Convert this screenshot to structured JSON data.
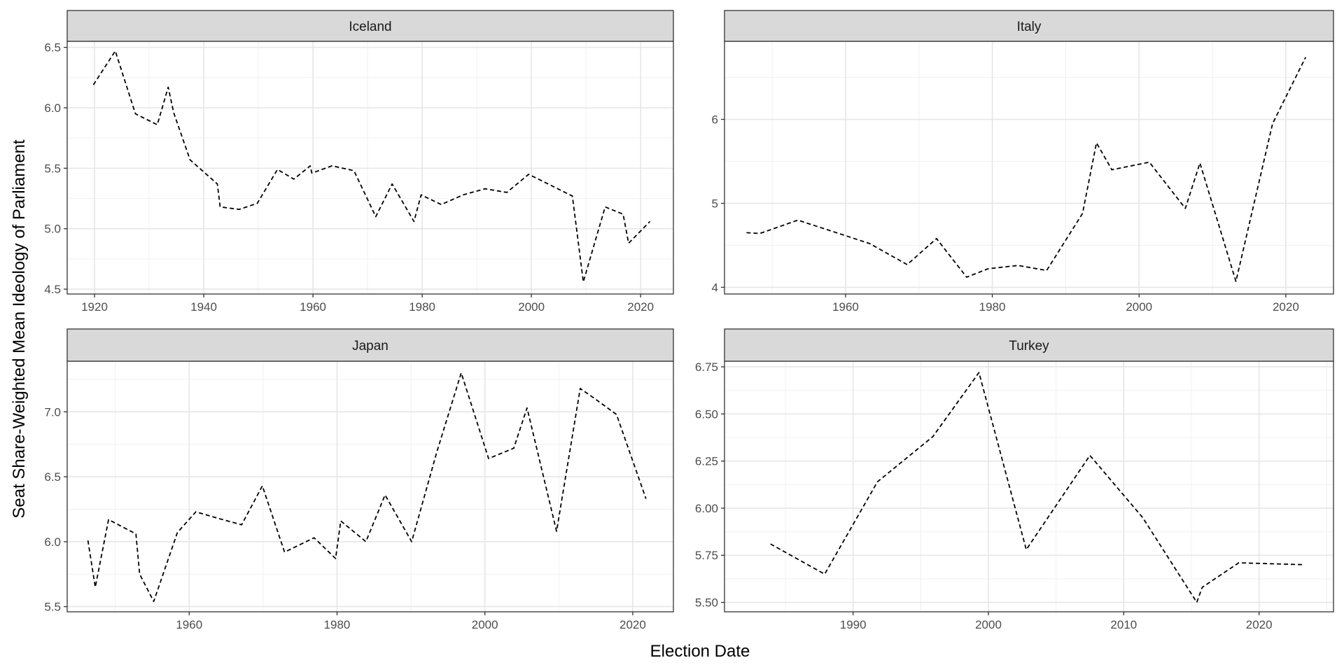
{
  "chart_data": {
    "type": "line",
    "layout": "facet-grid-2x2",
    "xlabel": "Election Date",
    "ylabel": "Seat Share-Weighted Mean Ideology of Parliament",
    "line_style": "dashed",
    "line_color": "#000000",
    "strip_color": "#d9d9d9",
    "grid": true,
    "panels": [
      {
        "title": "Iceland",
        "xlim": [
          1915,
          2026
        ],
        "ylim": [
          4.46,
          6.55
        ],
        "xticks": [
          1920,
          1940,
          1960,
          1980,
          2000,
          2020
        ],
        "yticks": [
          4.5,
          5.0,
          5.5,
          6.0,
          6.5
        ],
        "ytick_labels": [
          "4.5",
          "5.0",
          "5.5",
          "6.0",
          "6.5"
        ],
        "x": [
          1919.8,
          1923.8,
          1927.5,
          1931.5,
          1933.5,
          1934.5,
          1937.5,
          1942.5,
          1943,
          1946.5,
          1949.8,
          1953.5,
          1956.5,
          1959.5,
          1959.8,
          1963.5,
          1967.5,
          1971.5,
          1974.5,
          1978.5,
          1979.8,
          1983.5,
          1987.5,
          1991.5,
          1995.5,
          1999.5,
          2003.5,
          2007.5,
          2009.5,
          2013.5,
          2016.8,
          2017.8,
          2021.7
        ],
        "y": [
          6.19,
          6.47,
          5.95,
          5.86,
          6.17,
          5.96,
          5.57,
          5.37,
          5.18,
          5.16,
          5.21,
          5.49,
          5.41,
          5.52,
          5.46,
          5.52,
          5.48,
          5.1,
          5.37,
          5.06,
          5.28,
          5.2,
          5.28,
          5.33,
          5.3,
          5.45,
          5.36,
          5.27,
          4.56,
          5.18,
          5.12,
          4.88,
          5.06
        ]
      },
      {
        "title": "Italy",
        "xlim": [
          1943.5,
          2026.5
        ],
        "ylim": [
          3.92,
          6.93
        ],
        "xticks": [
          1960,
          1980,
          2000,
          2020
        ],
        "yticks": [
          4,
          5,
          6
        ],
        "ytick_labels": [
          "4",
          "5",
          "6"
        ],
        "x": [
          1946.5,
          1948.3,
          1953.5,
          1958.4,
          1963.3,
          1968.4,
          1972.4,
          1976.5,
          1979.4,
          1983.5,
          1987.4,
          1992.3,
          1994.2,
          1996.3,
          2001.4,
          2006.3,
          2008.3,
          2013.2,
          2018.2,
          2022.7
        ],
        "y": [
          4.65,
          4.64,
          4.8,
          4.66,
          4.52,
          4.27,
          4.58,
          4.12,
          4.22,
          4.26,
          4.2,
          4.88,
          5.72,
          5.4,
          5.49,
          4.94,
          5.48,
          4.07,
          5.95,
          6.74
        ]
      },
      {
        "title": "Japan",
        "xlim": [
          1943.5,
          2025.5
        ],
        "ylim": [
          5.46,
          7.39
        ],
        "xticks": [
          1960,
          1980,
          2000,
          2020
        ],
        "yticks": [
          5.5,
          6.0,
          6.5,
          7.0
        ],
        "ytick_labels": [
          "5.5",
          "6.0",
          "6.5",
          "7.0"
        ],
        "x": [
          1946.3,
          1947.3,
          1949.1,
          1952.8,
          1953.3,
          1955.2,
          1958.4,
          1960.9,
          1963.9,
          1967.1,
          1969.9,
          1972.9,
          1976.9,
          1979.8,
          1980.5,
          1983.9,
          1986.5,
          1990.1,
          1993.5,
          1996.8,
          2000.5,
          2003.9,
          2005.7,
          2009.7,
          2012.9,
          2014.9,
          2017.8,
          2021.8
        ],
        "y": [
          6.01,
          5.65,
          6.17,
          6.06,
          5.75,
          5.54,
          6.07,
          6.23,
          6.18,
          6.13,
          6.43,
          5.92,
          6.03,
          5.87,
          6.16,
          6.0,
          6.36,
          6.0,
          6.69,
          7.3,
          6.64,
          6.72,
          7.03,
          6.08,
          7.18,
          7.1,
          6.98,
          6.33
        ]
      },
      {
        "title": "Turkey",
        "xlim": [
          1980.5,
          2025.5
        ],
        "ylim": [
          5.45,
          6.78
        ],
        "xticks": [
          1990,
          2000,
          2010,
          2020
        ],
        "yticks": [
          5.5,
          5.75,
          6.0,
          6.25,
          6.5,
          6.75
        ],
        "ytick_labels": [
          "5.50",
          "5.75",
          "6.00",
          "6.25",
          "6.50",
          "6.75"
        ],
        "x": [
          1983.9,
          1987.9,
          1991.8,
          1995.9,
          1999.3,
          2002.8,
          2007.5,
          2011.4,
          2015.4,
          2015.8,
          2018.5,
          2023.3
        ],
        "y": [
          5.81,
          5.65,
          6.14,
          6.38,
          6.72,
          5.78,
          6.28,
          5.95,
          5.5,
          5.58,
          5.71,
          5.7
        ]
      }
    ]
  }
}
